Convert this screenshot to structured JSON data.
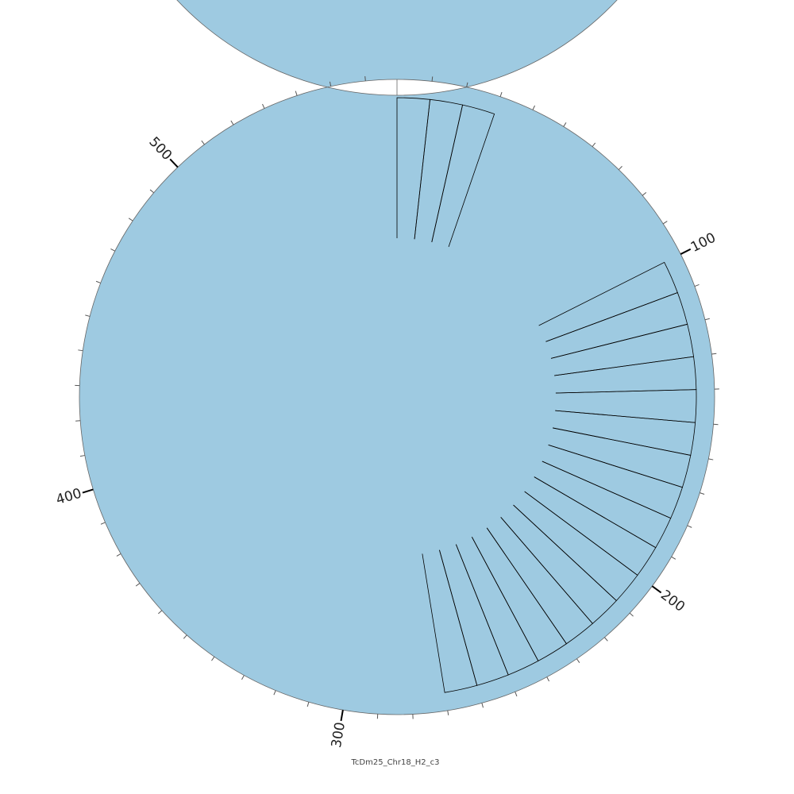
{
  "chart_data": {
    "type": "circular-track",
    "title": "TcDm25_Chr18_H2_c3",
    "xlim": [
      0,
      569
    ],
    "xticks": [
      100,
      200,
      300,
      400,
      500
    ],
    "minor_ticks": [
      10,
      20,
      30,
      40,
      50,
      60,
      70,
      80,
      90,
      110,
      120,
      130,
      140,
      150,
      160,
      170,
      180,
      190,
      210,
      220,
      230,
      240,
      250,
      260,
      270,
      280,
      290,
      310,
      320,
      330,
      340,
      350,
      360,
      370,
      380,
      390,
      410,
      420,
      430,
      440,
      450,
      460,
      470,
      480,
      490,
      510,
      520,
      530,
      540,
      550,
      560
    ],
    "ring_color": "#9ecae1",
    "segments": [
      [
        0,
        10
      ],
      [
        10,
        20
      ],
      [
        20,
        30
      ],
      [
        100,
        110
      ],
      [
        110,
        120
      ],
      [
        120,
        130
      ],
      [
        130,
        140
      ],
      [
        140,
        150
      ],
      [
        150,
        160
      ],
      [
        160,
        170
      ],
      [
        170,
        180
      ],
      [
        180,
        190
      ],
      [
        190,
        200
      ],
      [
        200,
        210
      ],
      [
        210,
        220
      ],
      [
        220,
        230
      ],
      [
        230,
        240
      ],
      [
        240,
        250
      ],
      [
        250,
        260
      ],
      [
        260,
        270
      ]
    ]
  }
}
